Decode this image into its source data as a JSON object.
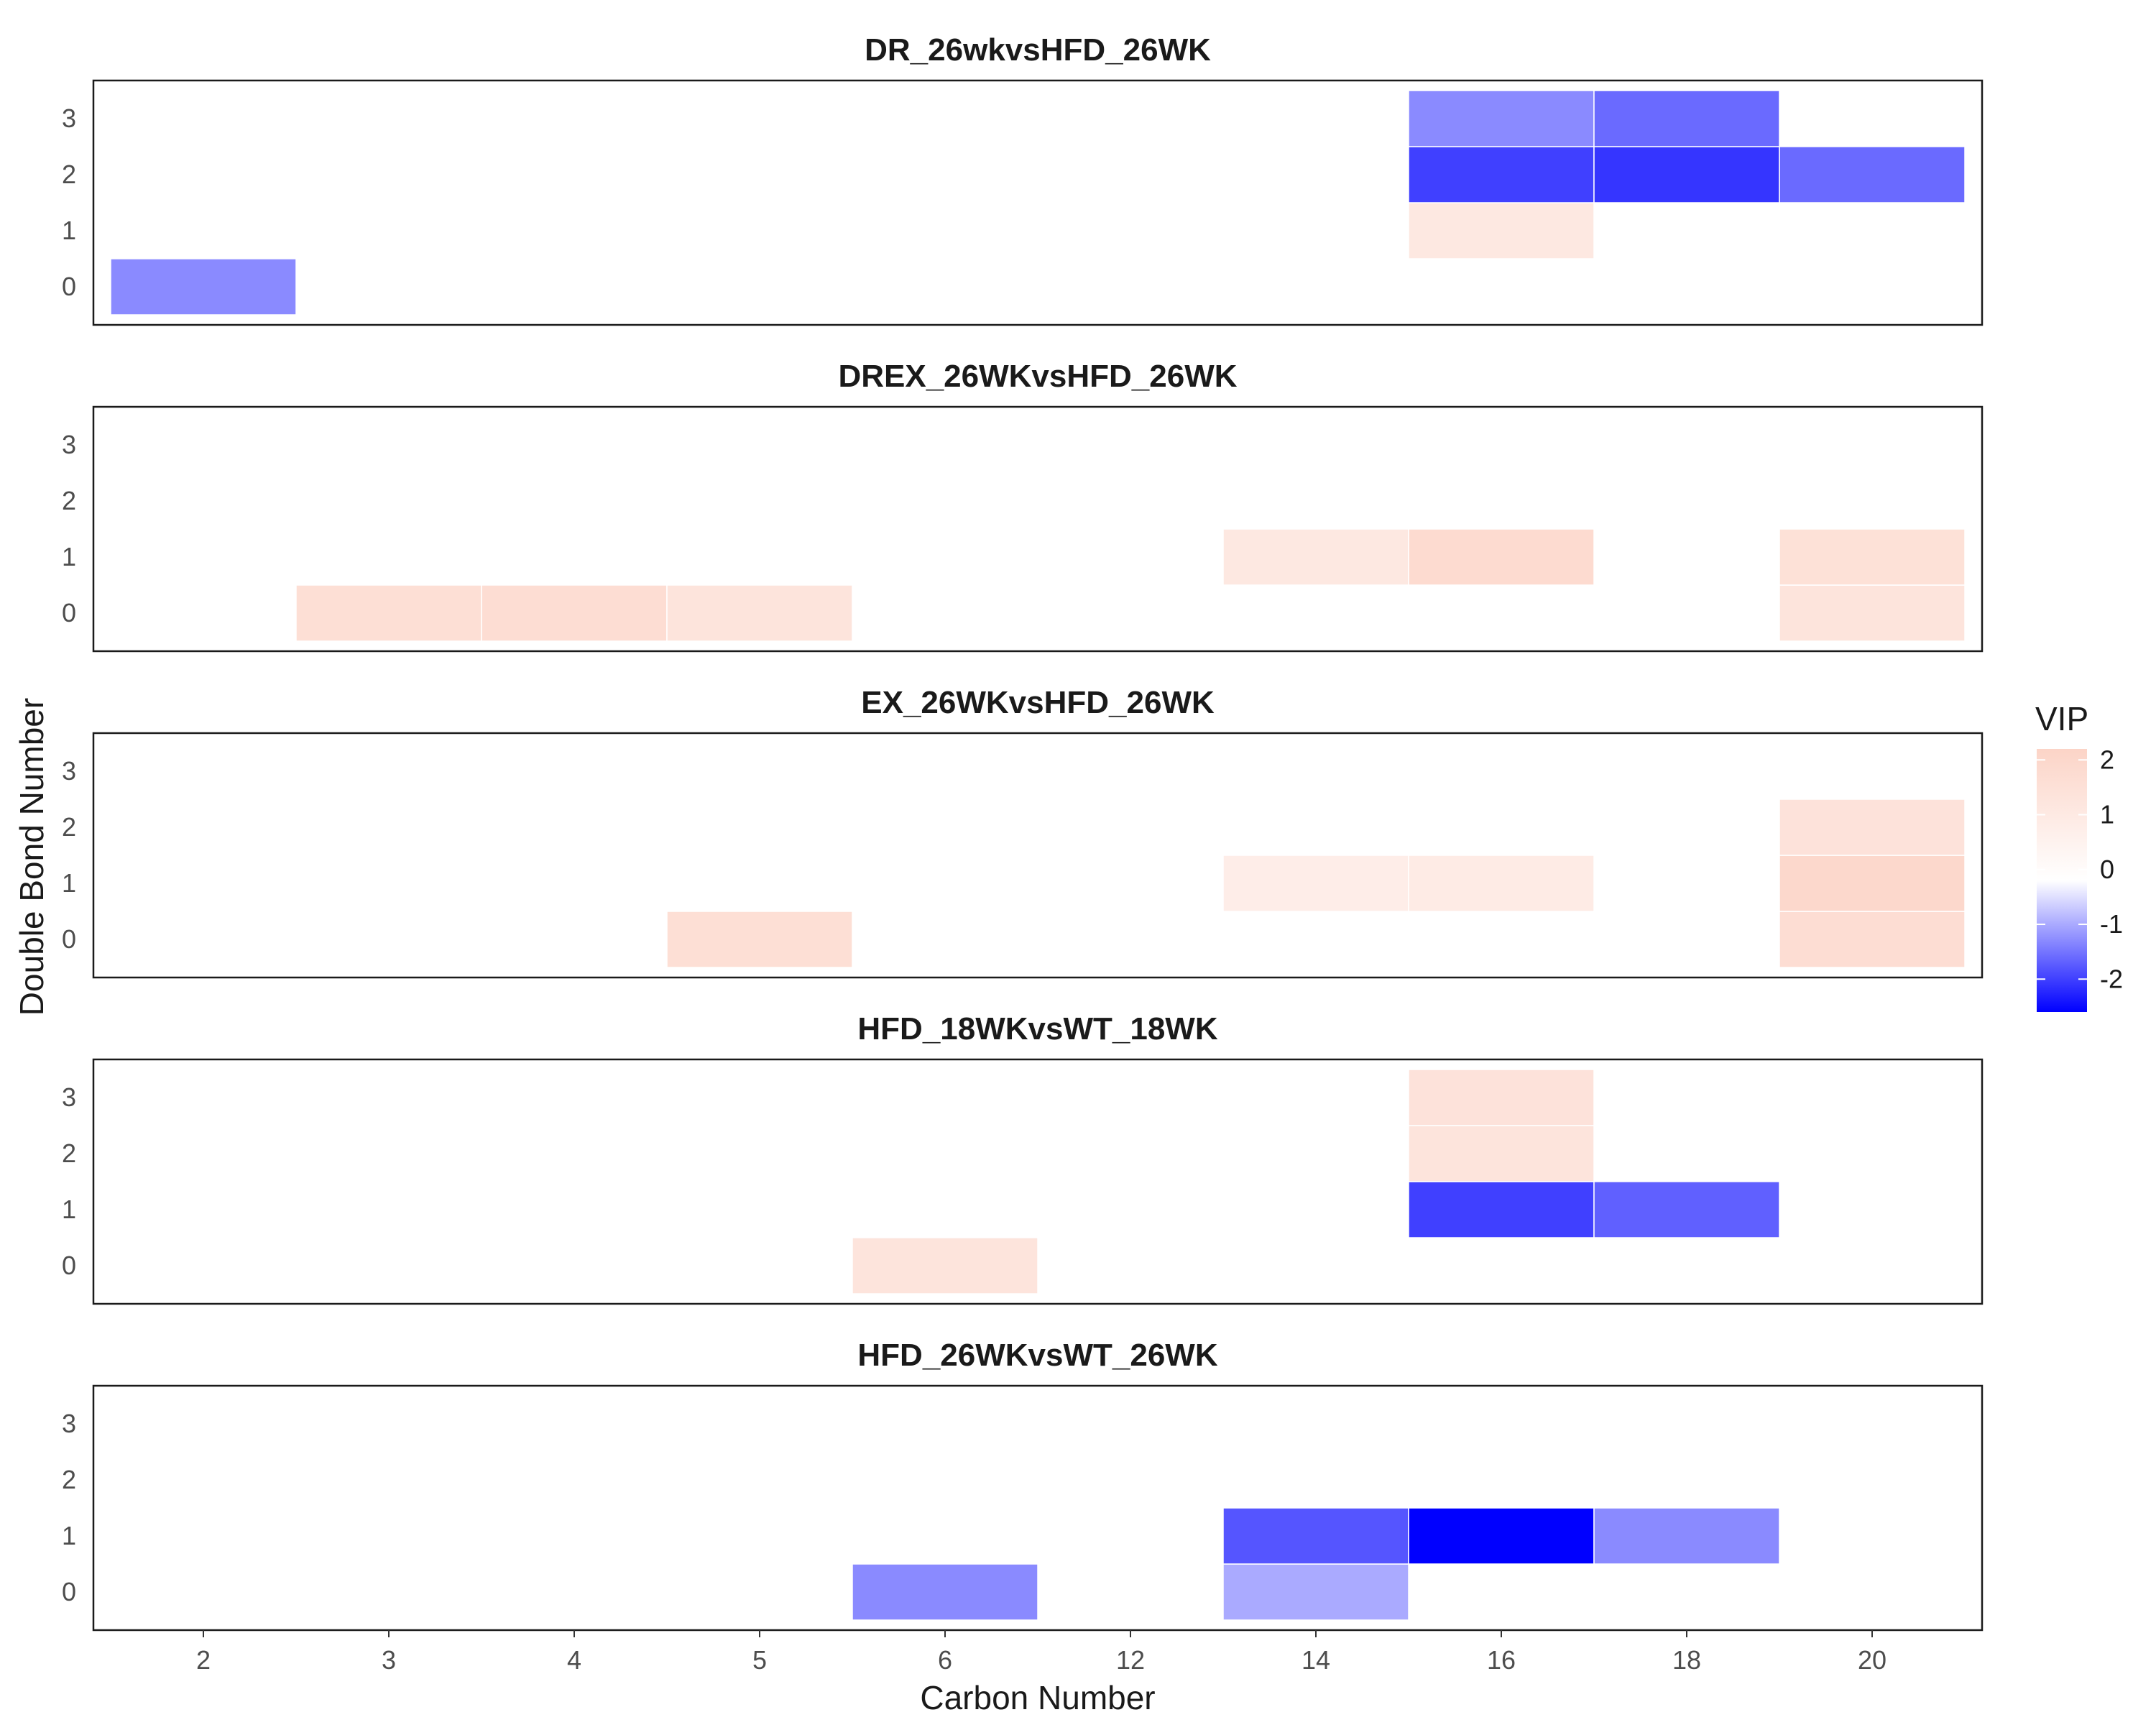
{
  "chart_data": {
    "type": "heatmap",
    "xlabel": "Carbon Number",
    "ylabel": "Double Bond Number",
    "x_categories": [
      "2",
      "3",
      "4",
      "5",
      "6",
      "12",
      "14",
      "16",
      "18",
      "20"
    ],
    "y_categories": [
      "0",
      "1",
      "2",
      "3"
    ],
    "legend": {
      "title": "VIP",
      "ticks": [
        2,
        1,
        0,
        -1,
        -2
      ],
      "range": [
        -2.6,
        2.2
      ],
      "colors": {
        "low": "#0000ff",
        "mid": "#ffffff",
        "high": "#fcd4c7"
      },
      "placement": "right"
    },
    "panels": [
      {
        "title": "DR_26wkvsHFD_26WK",
        "cells": [
          {
            "x": "2",
            "y": "0",
            "value": -1.3
          },
          {
            "x": "16",
            "y": "1",
            "value": 1.1
          },
          {
            "x": "16",
            "y": "2",
            "value": -2.0
          },
          {
            "x": "16",
            "y": "3",
            "value": -1.3
          },
          {
            "x": "18",
            "y": "2",
            "value": -2.1
          },
          {
            "x": "18",
            "y": "3",
            "value": -1.6
          },
          {
            "x": "20",
            "y": "2",
            "value": -1.6
          }
        ]
      },
      {
        "title": "DREX_26WKvsHFD_26WK",
        "cells": [
          {
            "x": "3",
            "y": "0",
            "value": 1.6
          },
          {
            "x": "4",
            "y": "0",
            "value": 1.7
          },
          {
            "x": "5",
            "y": "0",
            "value": 1.3
          },
          {
            "x": "14",
            "y": "1",
            "value": 1.1
          },
          {
            "x": "16",
            "y": "1",
            "value": 1.8
          },
          {
            "x": "20",
            "y": "0",
            "value": 1.3
          },
          {
            "x": "20",
            "y": "1",
            "value": 1.5
          }
        ]
      },
      {
        "title": "EX_26WKvsHFD_26WK",
        "cells": [
          {
            "x": "5",
            "y": "0",
            "value": 1.6
          },
          {
            "x": "14",
            "y": "1",
            "value": 0.8
          },
          {
            "x": "16",
            "y": "1",
            "value": 0.9
          },
          {
            "x": "20",
            "y": "0",
            "value": 1.7
          },
          {
            "x": "20",
            "y": "1",
            "value": 2.0
          },
          {
            "x": "20",
            "y": "2",
            "value": 1.4
          }
        ]
      },
      {
        "title": "HFD_18WKvsWT_18WK",
        "cells": [
          {
            "x": "6",
            "y": "0",
            "value": 1.3
          },
          {
            "x": "16",
            "y": "1",
            "value": -2.0
          },
          {
            "x": "16",
            "y": "2",
            "value": 1.3
          },
          {
            "x": "16",
            "y": "3",
            "value": 1.4
          },
          {
            "x": "18",
            "y": "1",
            "value": -1.7
          }
        ]
      },
      {
        "title": "HFD_26WKvsWT_26WK",
        "cells": [
          {
            "x": "6",
            "y": "0",
            "value": -1.3
          },
          {
            "x": "14",
            "y": "0",
            "value": -1.0
          },
          {
            "x": "14",
            "y": "1",
            "value": -1.8
          },
          {
            "x": "16",
            "y": "1",
            "value": -2.6
          },
          {
            "x": "18",
            "y": "1",
            "value": -1.3
          }
        ]
      }
    ]
  }
}
